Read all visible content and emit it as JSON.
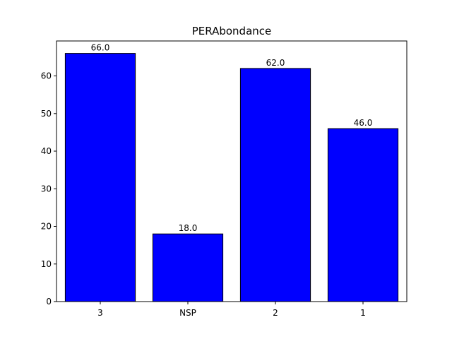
{
  "chart_data": {
    "type": "bar",
    "title": "PERAbondance",
    "xlabel": "",
    "ylabel": "",
    "categories": [
      "3",
      "NSP",
      "2",
      "1"
    ],
    "values": [
      66.0,
      18.0,
      62.0,
      46.0
    ],
    "value_labels": [
      "66.0",
      "18.0",
      "62.0",
      "46.0"
    ],
    "ylim": [
      0,
      69.3
    ],
    "yticks": [
      0,
      10,
      20,
      30,
      40,
      50,
      60
    ],
    "ytick_labels": [
      "0",
      "10",
      "20",
      "30",
      "40",
      "50",
      "60"
    ],
    "grid": false,
    "legend": "none",
    "colors": {
      "bar_fill": "#0000ff",
      "bar_edge": "#000000",
      "axis": "#000000"
    }
  }
}
